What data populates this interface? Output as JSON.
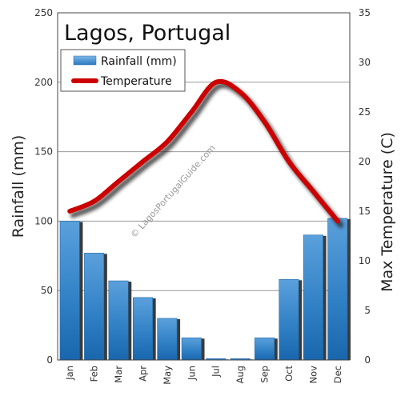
{
  "chart_data": {
    "type": "bar+line",
    "title": "Lagos, Portugal",
    "categories": [
      "Jan",
      "Feb",
      "Mar",
      "Apr",
      "May",
      "Jun",
      "Jul",
      "Aug",
      "Sep",
      "Oct",
      "Nov",
      "Dec"
    ],
    "series": [
      {
        "name": "Rainfall (mm)",
        "type": "bar",
        "axis": "left",
        "color": "#2f7fc4",
        "values": [
          100,
          77,
          57,
          45,
          30,
          16,
          1,
          1,
          16,
          58,
          90,
          102
        ]
      },
      {
        "name": "Temperature",
        "type": "line",
        "axis": "right",
        "color": "#cc0000",
        "values": [
          15,
          16,
          18,
          20,
          22,
          25,
          28,
          27,
          24,
          20,
          17,
          14
        ]
      }
    ],
    "ylabel_left": "Rainfall (mm)",
    "ylabel_right": "Max Temperature (C)",
    "ylim_left": [
      0,
      250
    ],
    "ylim_right": [
      0,
      35
    ],
    "yticks_left": [
      "0",
      "50",
      "100",
      "150",
      "200",
      "250"
    ],
    "yticks_right": [
      "0",
      "5",
      "10",
      "15",
      "20",
      "25",
      "30",
      "35"
    ],
    "grid": true,
    "legend_position": "top-left",
    "watermark": "© LagosPortugalGuide.com"
  }
}
